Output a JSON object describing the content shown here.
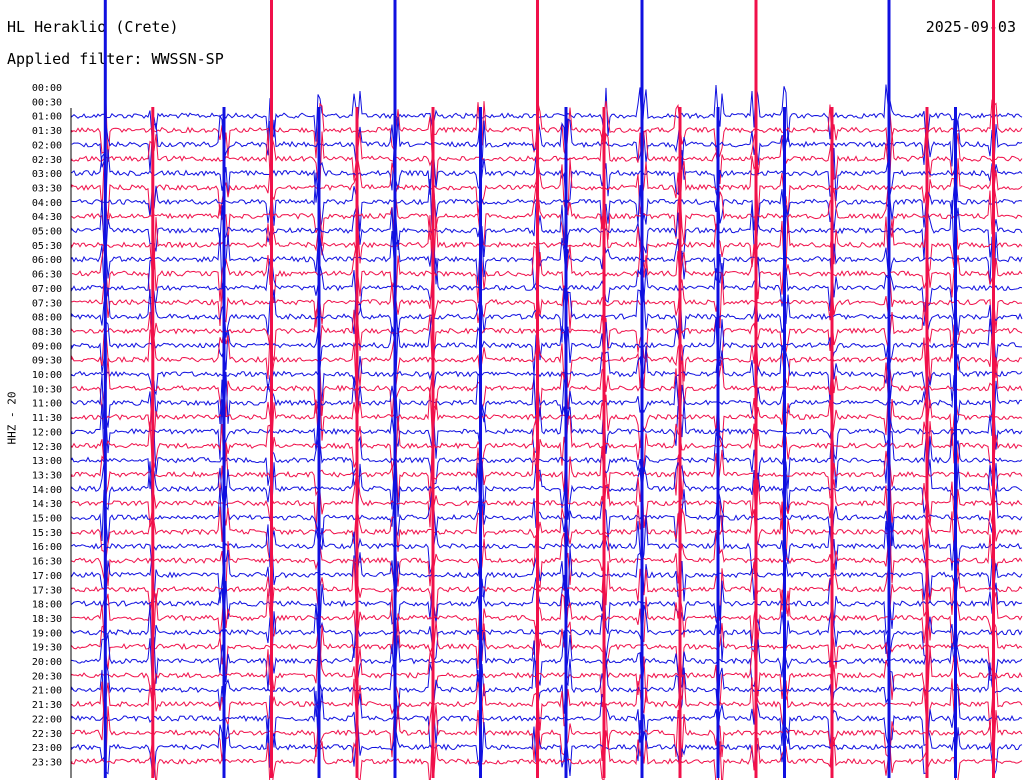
{
  "header": {
    "station": "HL Heraklio (Crete)",
    "filter": "Applied filter: WWSSN-SP",
    "date": "2025-09-03",
    "channel": "HHZ - 20"
  },
  "chart_data": {
    "type": "line",
    "title": "HL Heraklio (Crete)",
    "date": "2025-09-03",
    "filter": "WWSSN-SP",
    "ylabel": "HHZ - 20",
    "row_labels": [
      "00:00",
      "00:30",
      "01:00",
      "01:30",
      "02:00",
      "02:30",
      "03:00",
      "03:30",
      "04:00",
      "04:30",
      "05:00",
      "05:30",
      "06:00",
      "06:30",
      "07:00",
      "07:30",
      "08:00",
      "08:30",
      "09:00",
      "09:30",
      "10:00",
      "10:30",
      "11:00",
      "11:30",
      "12:00",
      "12:30",
      "13:00",
      "13:30",
      "14:00",
      "14:30",
      "15:00",
      "15:30",
      "16:00",
      "16:30",
      "17:00",
      "17:30",
      "18:00",
      "18:30",
      "19:00",
      "19:30",
      "20:00",
      "20:30",
      "21:00",
      "21:30",
      "22:00",
      "22:30",
      "23:00",
      "23:30"
    ],
    "first_trace_row": "01:00",
    "trace_colors": [
      "#1010e0",
      "#f0104a"
    ],
    "spike_columns": [
      0.035,
      0.085,
      0.16,
      0.21,
      0.26,
      0.3,
      0.34,
      0.38,
      0.43,
      0.49,
      0.52,
      0.56,
      0.6,
      0.64,
      0.68,
      0.72,
      0.75,
      0.8,
      0.86,
      0.9,
      0.93,
      0.97
    ],
    "grid": false
  }
}
